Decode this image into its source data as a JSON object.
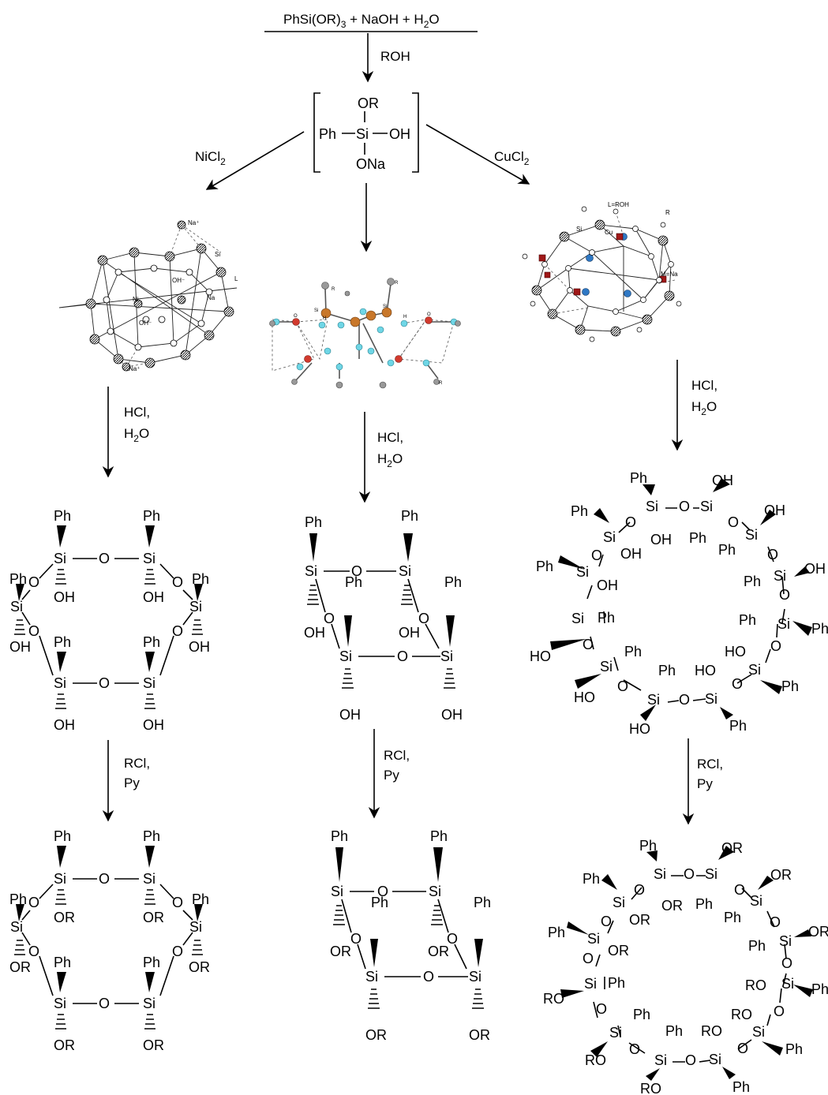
{
  "reactants": {
    "base": "PhSi(OR)",
    "sub3": "3",
    "rest": " + NaOH + H",
    "sub2": "2",
    "tail": "O"
  },
  "steps": {
    "roh": "ROH",
    "nicl": "NiCl",
    "nicl_sub": "2",
    "cucl": "CuCl",
    "cucl_sub": "2",
    "hcl": "HCl,",
    "h2o_h": "H",
    "h2o_sub": "2",
    "h2o_o": "O",
    "rcl": "RCl,",
    "py": "Py"
  },
  "intermediate": {
    "or": "OR",
    "ph": "Ph",
    "si": "Si",
    "oh": "OH",
    "ona": "ONa"
  },
  "atoms": {
    "si": "Si",
    "o": "O",
    "ph": "Ph",
    "oh": "OH",
    "or": "OR",
    "ho": "HO",
    "ro": "RO"
  },
  "crystal_labels": {
    "ni": {
      "na1": "Na⁺",
      "na2": "Na⁺",
      "si": "Si",
      "oh1": "OH⁻",
      "oh2": "OH⁻",
      "ni": "Ni",
      "na": "Na",
      "l": "L"
    },
    "cu": {
      "lroh": "L=ROH",
      "r": "R",
      "si": "Si",
      "cu": "Cu",
      "mna": "M=Na"
    },
    "mid": {
      "r": "R",
      "si": "Si",
      "o": "O",
      "h": "H"
    }
  },
  "colors": {
    "ink": "#000000",
    "si_orange": "#c8772a",
    "o_red": "#d23a2e",
    "h_cyan": "#6fd6e6",
    "cu_blue": "#2f78c4",
    "o_dark": "#a01818",
    "c_grey": "#888888"
  }
}
